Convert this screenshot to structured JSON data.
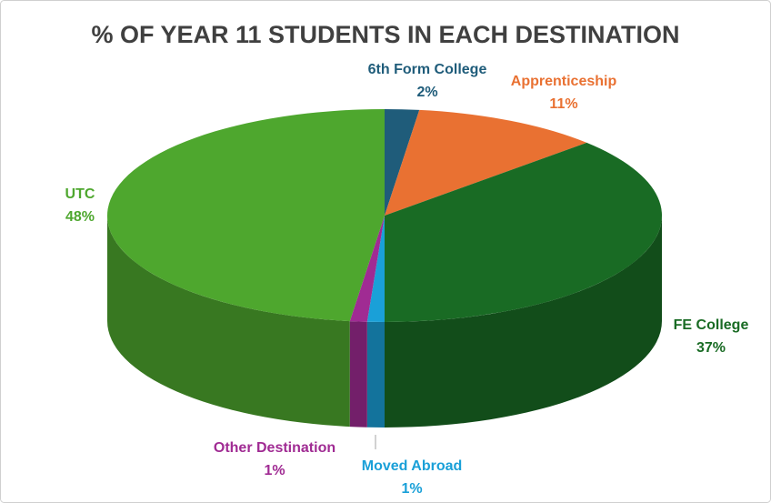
{
  "chart_data": {
    "type": "pie3d",
    "title": "% OF YEAR 11 STUDENTS IN EACH DESTINATION",
    "categories": [
      "6th Form College",
      "Apprenticeship",
      "FE College",
      "Moved Abroad",
      "Other Destination",
      "UTC"
    ],
    "values": [
      2,
      11,
      37,
      1,
      1,
      48
    ],
    "value_labels": [
      "2%",
      "11%",
      "37%",
      "1%",
      "1%",
      "48%"
    ],
    "colors": [
      "#1f5c7a",
      "#e97132",
      "#196b24",
      "#1aa0d8",
      "#a02b93",
      "#4ea72e"
    ]
  }
}
